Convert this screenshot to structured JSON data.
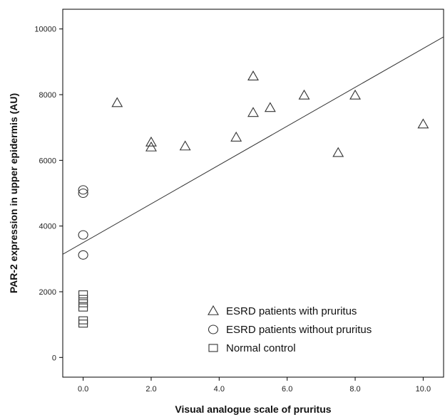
{
  "chart_data": {
    "type": "scatter",
    "title": "",
    "xlabel": "Visual analogue scale of pruritus",
    "ylabel": "PAR-2 expression in upper epidermis (AU)",
    "xlim": [
      -0.6,
      10.6
    ],
    "ylim": [
      -600,
      10600
    ],
    "x_ticks": [
      0,
      2,
      4,
      6,
      8,
      10
    ],
    "x_tick_labels": [
      "0.0",
      "2.0",
      "4.0",
      "6.0",
      "8.0",
      "10.0"
    ],
    "y_ticks": [
      0,
      2000,
      4000,
      6000,
      8000,
      10000
    ],
    "y_tick_labels": [
      "0",
      "2000",
      "4000",
      "6000",
      "8000",
      "10000"
    ],
    "grid": false,
    "legend_position": "bottom-right",
    "series": [
      {
        "name": "ESRD patients with pruritus",
        "marker": "triangle",
        "points": [
          [
            1.0,
            7750
          ],
          [
            2.0,
            6550
          ],
          [
            2.0,
            6400
          ],
          [
            3.0,
            6430
          ],
          [
            4.5,
            6700
          ],
          [
            5.0,
            8560
          ],
          [
            5.0,
            7450
          ],
          [
            5.5,
            7600
          ],
          [
            6.5,
            7980
          ],
          [
            7.5,
            6230
          ],
          [
            8.0,
            7980
          ],
          [
            10.0,
            7100
          ]
        ]
      },
      {
        "name": "ESRD patients without pruritus",
        "marker": "circle",
        "points": [
          [
            0,
            5100
          ],
          [
            0,
            5000
          ],
          [
            0,
            3730
          ],
          [
            0,
            3120
          ]
        ]
      },
      {
        "name": "Normal control",
        "marker": "square",
        "points": [
          [
            0,
            1920
          ],
          [
            0,
            1780
          ],
          [
            0,
            1650
          ],
          [
            0,
            1520
          ],
          [
            0,
            1130
          ],
          [
            0,
            1030
          ]
        ]
      }
    ],
    "fit_line": {
      "x": [
        -0.6,
        10.6
      ],
      "y": [
        3140,
        9760
      ]
    }
  }
}
